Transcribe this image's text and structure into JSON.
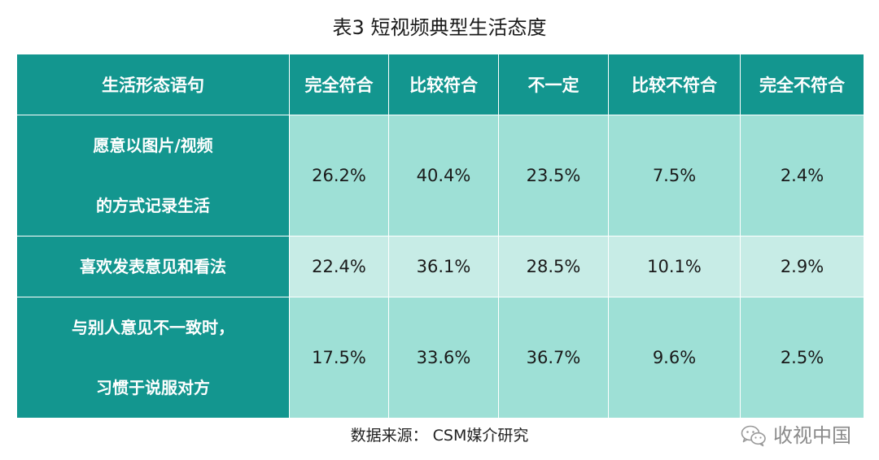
{
  "title": "表3  短视频典型生活态度",
  "table": {
    "headers": [
      "生活形态语句",
      "完全符合",
      "比较符合",
      "不一定",
      "比较不符合",
      "完全不符合"
    ],
    "rows": [
      {
        "statement_lines": [
          "愿意以图片/视频",
          "的方式记录生活"
        ],
        "values": [
          "26.2%",
          "40.4%",
          "23.5%",
          "7.5%",
          "2.4%"
        ]
      },
      {
        "statement_lines": [
          "喜欢发表意见和看法"
        ],
        "values": [
          "22.4%",
          "36.1%",
          "28.5%",
          "10.1%",
          "2.9%"
        ]
      },
      {
        "statement_lines": [
          "与别人意见不一致时，",
          "习惯于说服对方"
        ],
        "values": [
          "17.5%",
          "33.6%",
          "36.7%",
          "9.6%",
          "2.5%"
        ]
      }
    ]
  },
  "source": "数据来源：  CSM媒介研究",
  "watermark": {
    "text": "收视中国",
    "icon": "wechat-icon"
  },
  "colors": {
    "header_bg": "#13968f",
    "cell_bg_dark": "#9ee0d6",
    "cell_bg_light": "#c7ece6"
  }
}
